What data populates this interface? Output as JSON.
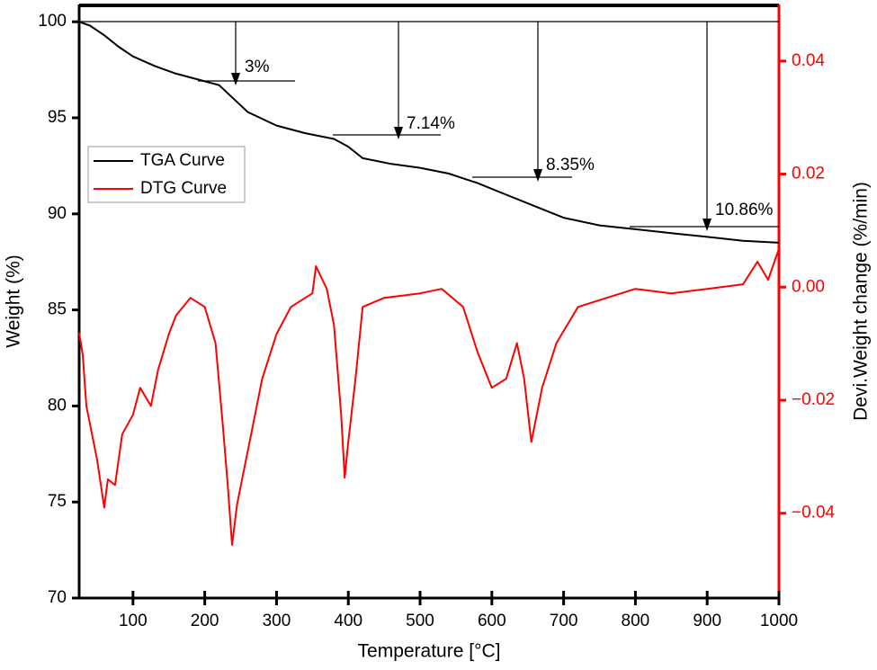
{
  "chart_data": {
    "type": "line",
    "xlabel": "Temperature [°C]",
    "ylabel": "Weight (%)",
    "y2label": "Devi.Weight change (%/min)",
    "xlim": [
      25,
      1000
    ],
    "xticks": [
      100,
      200,
      300,
      400,
      500,
      600,
      700,
      800,
      900,
      1000
    ],
    "ylim": [
      70,
      100.9
    ],
    "yticks": [
      70,
      75,
      80,
      85,
      90,
      95,
      100
    ],
    "y2lim": [
      -0.055,
      0.05
    ],
    "y2ticks": [
      {
        "value": -0.04,
        "label": "−0.04"
      },
      {
        "value": -0.02,
        "label": "−0.02"
      },
      {
        "value": 0,
        "label": "0.00"
      },
      0.02,
      0.04
    ],
    "legend": "center left",
    "series": [
      {
        "name": "TGA Curve",
        "color": "#000000",
        "x": [
          25,
          40,
          60,
          80,
          100,
          130,
          160,
          200,
          220,
          240,
          260,
          300,
          340,
          380,
          400,
          420,
          460,
          500,
          540,
          580,
          620,
          660,
          700,
          750,
          800,
          850,
          900,
          950,
          1000
        ],
        "values": [
          100,
          99.8,
          99.3,
          98.7,
          98.2,
          97.7,
          97.3,
          96.9,
          96.7,
          96.0,
          95.3,
          94.6,
          94.2,
          93.9,
          93.5,
          92.9,
          92.6,
          92.4,
          92.1,
          91.6,
          91.0,
          90.4,
          89.8,
          89.4,
          89.2,
          89.0,
          88.8,
          88.6,
          88.5
        ]
      },
      {
        "name": "DTG Curve",
        "color": "#ff0000",
        "axis": "y2",
        "x": [
          25,
          30,
          35,
          50,
          60,
          65,
          75,
          85,
          100,
          110,
          125,
          135,
          150,
          160,
          180,
          200,
          215,
          225,
          232,
          238,
          245,
          255,
          265,
          280,
          300,
          320,
          350,
          355,
          370,
          380,
          390,
          395,
          400,
          410,
          420,
          450,
          500,
          530,
          560,
          580,
          600,
          620,
          635,
          645,
          655,
          670,
          690,
          720,
          760,
          800,
          850,
          900,
          950,
          970,
          985,
          1000
        ],
        "values": [
          -0.008,
          -0.012,
          -0.021,
          -0.0305,
          -0.039,
          -0.034,
          -0.035,
          -0.026,
          -0.0226,
          -0.0178,
          -0.021,
          -0.0146,
          -0.0083,
          -0.005,
          -0.0019,
          -0.0035,
          -0.0099,
          -0.0242,
          -0.035,
          -0.0456,
          -0.0385,
          -0.0321,
          -0.0258,
          -0.0162,
          -0.0083,
          -0.0035,
          -0.0011,
          0.0037,
          -0.0003,
          -0.0067,
          -0.0226,
          -0.0337,
          -0.0274,
          -0.0162,
          -0.0035,
          -0.0019,
          -0.0011,
          -0.0003,
          -0.0035,
          -0.0115,
          -0.0178,
          -0.0162,
          -0.0099,
          -0.0162,
          -0.0274,
          -0.0178,
          -0.0099,
          -0.0035,
          -0.0019,
          -0.0003,
          -0.0011,
          -0.0003,
          0.0005,
          0.0045,
          0.0013,
          0.0068
        ]
      }
    ],
    "annotations": [
      "3%",
      "7.14%",
      "8.35%",
      "10.86%"
    ]
  }
}
